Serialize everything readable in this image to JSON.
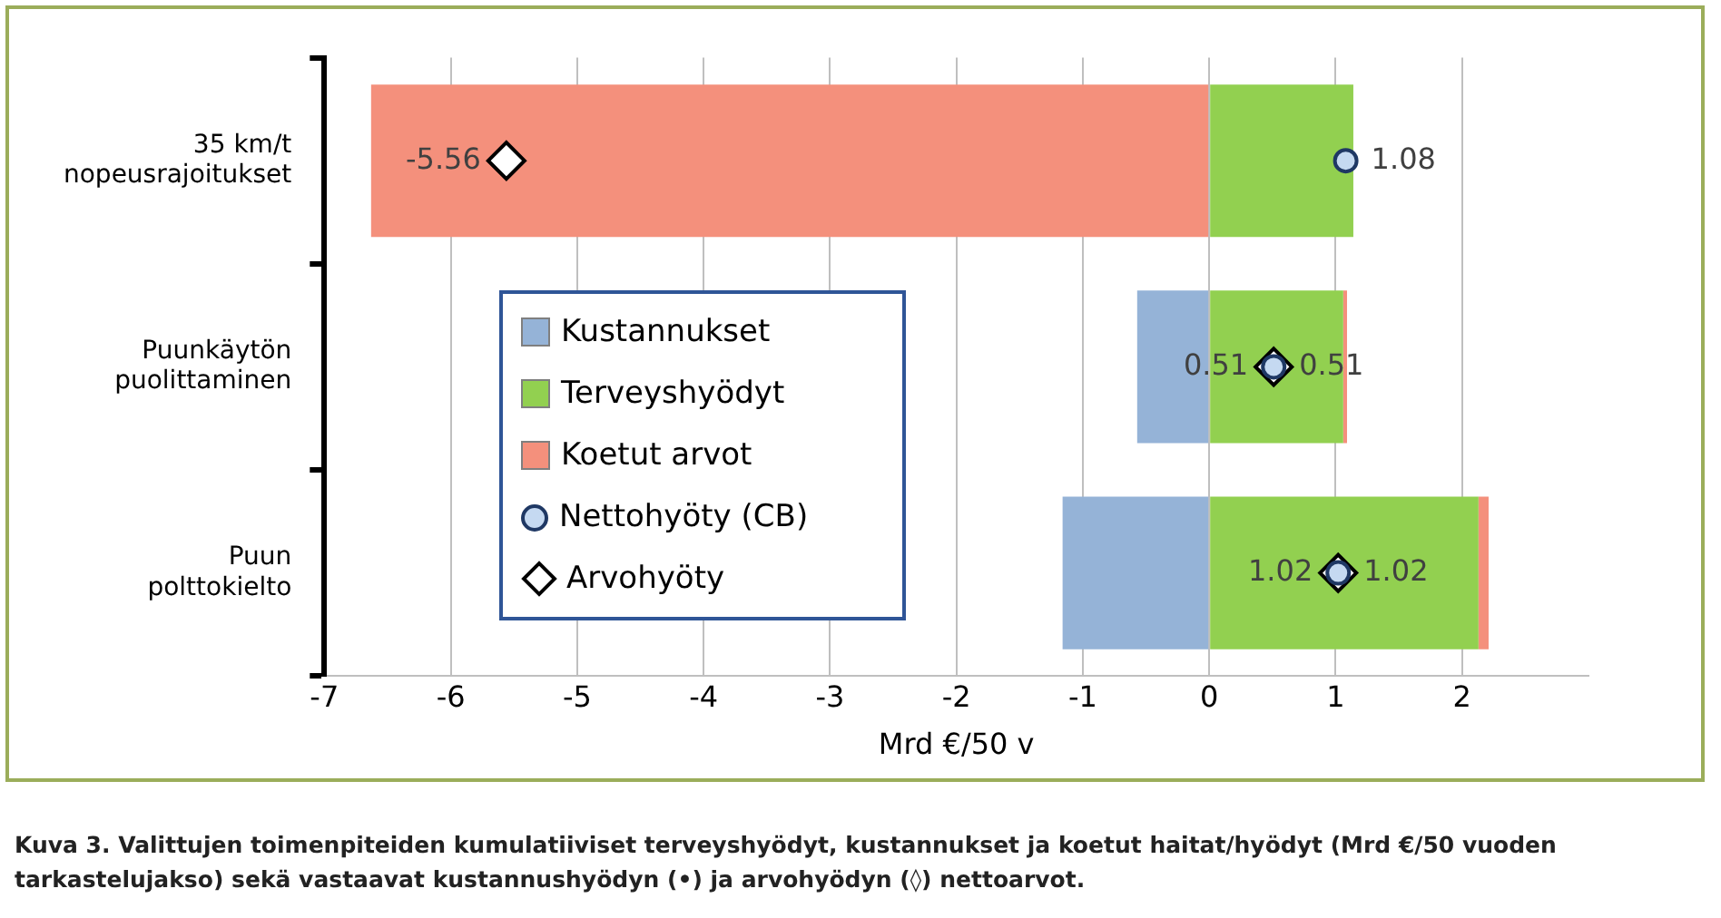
{
  "chart_data": {
    "type": "bar",
    "orientation": "horizontal",
    "stacked": true,
    "categories": [
      "35 km/t\nnopeusrajoitukset",
      "Puunkäytön\npuolittaminen",
      "Puun\npolttokielto"
    ],
    "series": [
      {
        "name": "Kustannukset",
        "color": "#95b3d7",
        "values": [
          0,
          -0.57,
          -1.16
        ]
      },
      {
        "name": "Terveyshyödyt",
        "color": "#92d050",
        "values": [
          1.14,
          1.06,
          2.13
        ]
      },
      {
        "name": "Koetut arvot",
        "color": "#f4907c",
        "values": [
          -6.63,
          0.03,
          0.08
        ]
      },
      {
        "name": "Nettohyöty (CB)",
        "type": "scatter",
        "marker": "circle",
        "color": "#c5d9f1",
        "values": [
          1.08,
          0.51,
          1.02
        ],
        "value_labels": [
          "1.08",
          "0.51",
          "1.02"
        ]
      },
      {
        "name": "Arvohyöty",
        "type": "scatter",
        "marker": "diamond",
        "color": "#ffffff",
        "values": [
          -5.56,
          0.51,
          1.02
        ],
        "value_labels": [
          "-5.56",
          "0.51",
          "1.02"
        ]
      }
    ],
    "xlabel": "Mrd €/50 v",
    "xlim": [
      -7,
      3
    ],
    "xticks": [
      -7,
      -6,
      -5,
      -4,
      -3,
      -2,
      -1,
      0,
      1,
      2
    ],
    "grid": "x",
    "legend": "left",
    "annotations": [
      "Kuva 3. Valittujen toimenpiteiden kumulatiiviset terveyshyödyt, kustannukset ja koetut haitat/hyödyt (Mrd €/50 vuoden tarkastelujakso) sekä vastaavat kustannushyödyn (•) ja arvohyödyn (◊) nettoarvot."
    ]
  }
}
